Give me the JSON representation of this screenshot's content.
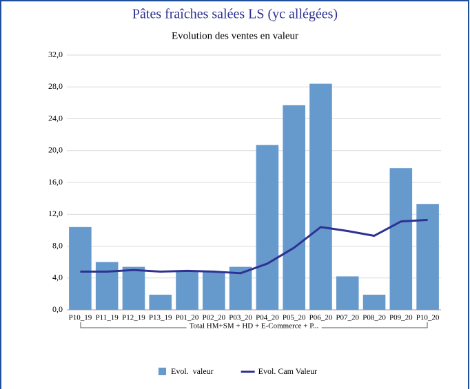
{
  "chart_data": {
    "type": "bar-line",
    "title": "Pâtes fraîches salées LS (yc allégées)",
    "subtitle": "Evolution des ventes en valeur",
    "categories": [
      "P10_19",
      "P11_19",
      "P12_19",
      "P13_19",
      "P01_20",
      "P02_20",
      "P03_20",
      "P04_20",
      "P05_20",
      "P06_20",
      "P07_20",
      "P08_20",
      "P09_20",
      "P10_20"
    ],
    "group_label": "Total HM+SM + HD + E-Commerce + P...",
    "series": [
      {
        "name": "Evol.  valeur",
        "type": "bar",
        "color": "#6699cc",
        "values": [
          10.4,
          6.0,
          5.4,
          1.9,
          4.8,
          4.8,
          5.4,
          20.7,
          25.7,
          28.4,
          4.2,
          1.9,
          17.8,
          13.3
        ]
      },
      {
        "name": "Evol. Cam Valeur",
        "type": "line",
        "color": "#2e3192",
        "values": [
          4.8,
          4.8,
          5.0,
          4.8,
          4.9,
          4.8,
          4.6,
          5.8,
          7.8,
          10.4,
          9.9,
          9.3,
          11.1,
          11.3
        ]
      }
    ],
    "ylim": [
      0,
      32
    ],
    "yticks": [
      {
        "value": 0,
        "label": "0,0"
      },
      {
        "value": 4,
        "label": "4,0"
      },
      {
        "value": 8,
        "label": "8,0"
      },
      {
        "value": 12,
        "label": "12,0"
      },
      {
        "value": 16,
        "label": "16,0"
      },
      {
        "value": 20,
        "label": "20,0"
      },
      {
        "value": 24,
        "label": "24,0"
      },
      {
        "value": 28,
        "label": "28,0"
      },
      {
        "value": 32,
        "label": "32,0"
      }
    ],
    "grid": true,
    "legend": "bottom"
  }
}
